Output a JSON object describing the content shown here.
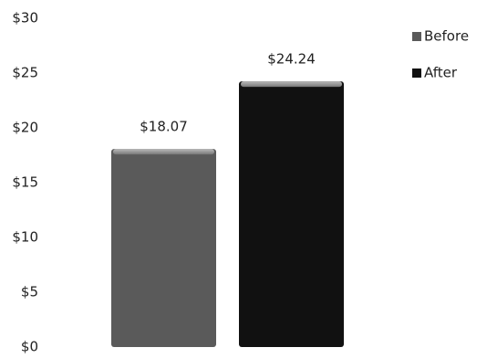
{
  "chart_data": {
    "type": "bar",
    "categories": [
      null
    ],
    "series": [
      {
        "name": "Before",
        "color": "#5a5a5a",
        "values": [
          18.07
        ],
        "value_labels": [
          "$18.07"
        ]
      },
      {
        "name": "After",
        "color": "#111111",
        "values": [
          24.24
        ],
        "value_labels": [
          "$24.24"
        ]
      }
    ],
    "ylim": [
      0,
      30
    ],
    "yticks": [
      {
        "value": 0,
        "label": "$0"
      },
      {
        "value": 5,
        "label": "$5"
      },
      {
        "value": 10,
        "label": "$10"
      },
      {
        "value": 15,
        "label": "$15"
      },
      {
        "value": 20,
        "label": "$20"
      },
      {
        "value": 25,
        "label": "$25"
      },
      {
        "value": 30,
        "label": "$30"
      }
    ],
    "grid": false,
    "legend": "right"
  }
}
